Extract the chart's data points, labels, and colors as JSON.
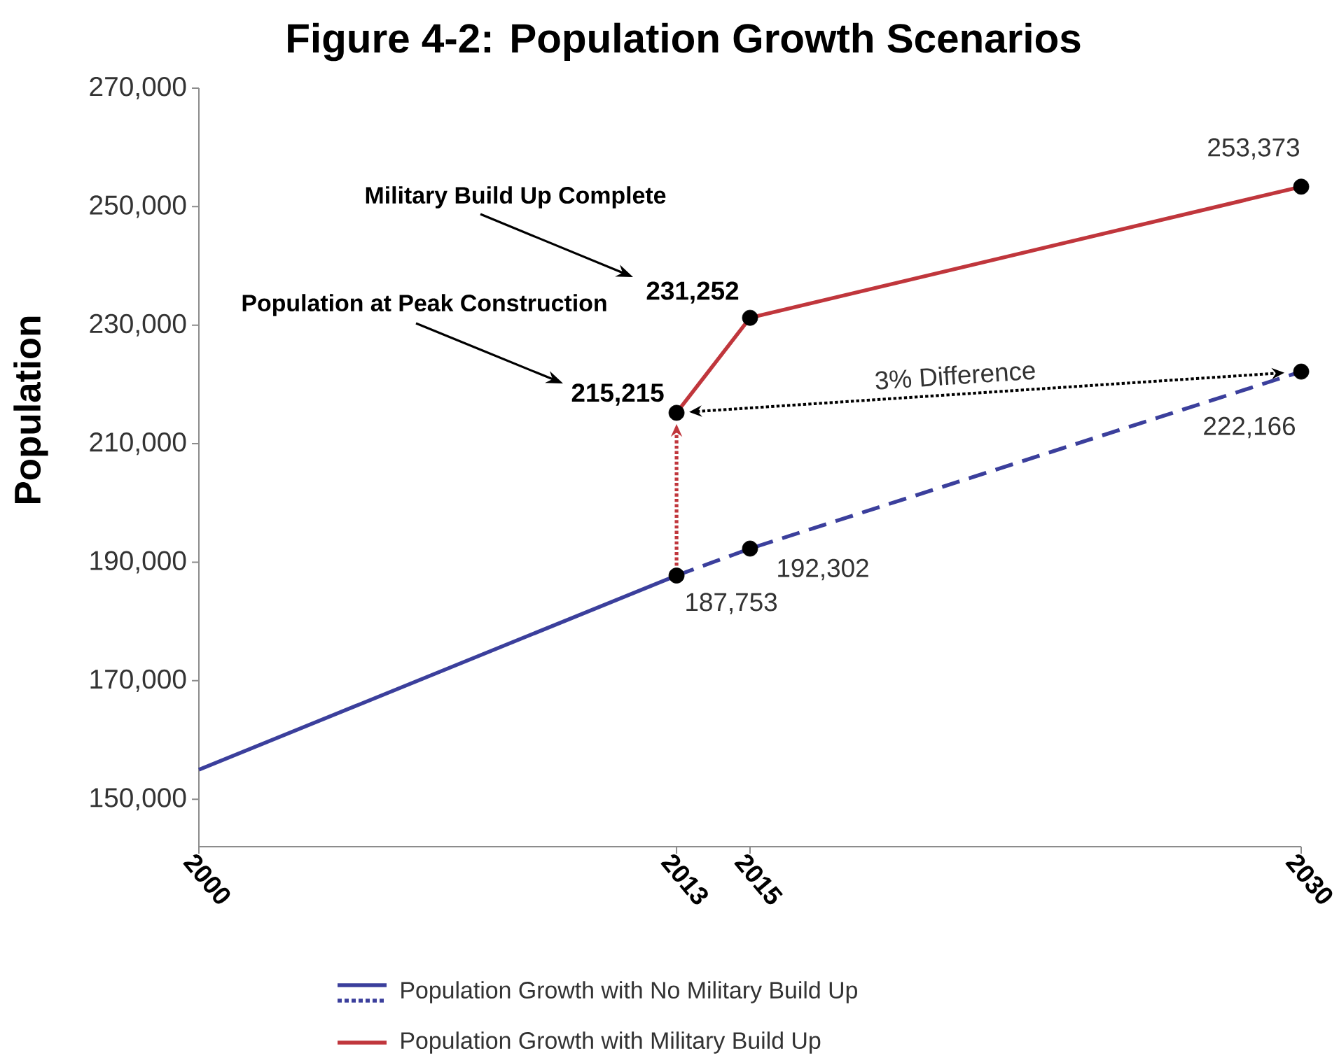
{
  "chart_data": {
    "type": "line",
    "title": "Figure 4-2: Population Growth Scenarios",
    "ylabel": "Population",
    "xlim": [
      2000,
      2030
    ],
    "xticks": [
      2000,
      2013,
      2015,
      2030
    ],
    "ylim": [
      142000,
      270000
    ],
    "yticks": [
      {
        "value": 150000,
        "label": "150,000"
      },
      {
        "value": 170000,
        "label": "170,000"
      },
      {
        "value": 190000,
        "label": "190,000"
      },
      {
        "value": 210000,
        "label": "210,000"
      },
      {
        "value": 230000,
        "label": "230,000"
      },
      {
        "value": 250000,
        "label": "250,000"
      },
      {
        "value": 270000,
        "label": "270,000"
      }
    ],
    "series": [
      {
        "name": "Population Growth with No Military Build Up",
        "color": "#3b3f9c",
        "x": [
          2000,
          2013
        ],
        "values": [
          155000,
          187753
        ],
        "line_style": "solid"
      },
      {
        "color": "#3b3f9c",
        "x": [
          2013,
          2015,
          2030
        ],
        "values": [
          187753,
          192302,
          222166
        ],
        "line_style": "dashed"
      },
      {
        "name": "Population Growth with Military Build Up",
        "color": "#c0363c",
        "x": [
          2013,
          2015,
          2030
        ],
        "values": [
          215215,
          231252,
          253373
        ],
        "line_style": "solid"
      },
      {
        "type": "scatter",
        "color": "#000000",
        "marker": "circle",
        "x": [
          2013,
          2015,
          2030,
          2013,
          2015,
          2030
        ],
        "values": [
          187753,
          192302,
          222166,
          215215,
          231252,
          253373
        ],
        "value_labels": [
          "187,753",
          "192,302",
          "222,166",
          "215,215",
          "231,252",
          "253,373"
        ]
      }
    ],
    "annotations": [
      "Military Build Up Complete",
      "Population at Peak Construction",
      "3% Difference"
    ],
    "legend": "bottom"
  }
}
